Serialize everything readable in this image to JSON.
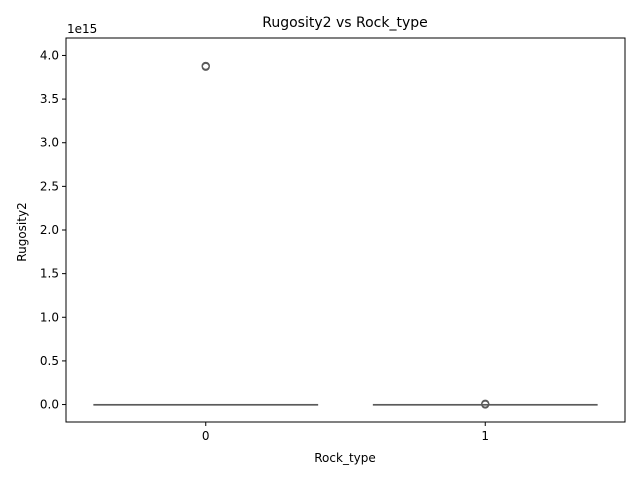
{
  "chart_data": {
    "type": "box",
    "title": "Rugosity2 vs Rock_type",
    "xlabel": "Rock_type",
    "ylabel": "Rugosity2",
    "offset_label": "1e15",
    "categories": [
      "0",
      "1"
    ],
    "y_ticks": [
      "0.0",
      "0.5",
      "1.0",
      "1.5",
      "2.0",
      "2.5",
      "3.0",
      "3.5",
      "4.0"
    ],
    "ylim": [
      -0.2,
      4.2
    ],
    "y_scale_note": "values in units of 1e15",
    "grid": false,
    "boxes": [
      {
        "category": "0",
        "q1": 0,
        "median": 0,
        "q3": 0,
        "whisker_low": 0,
        "whisker_high": 0,
        "outliers": [
          3.87,
          3.88,
          3.88
        ]
      },
      {
        "category": "1",
        "q1": 0,
        "median": 0,
        "q3": 0,
        "whisker_low": 0,
        "whisker_high": 0,
        "outliers": [
          0.0,
          0.005,
          0.01
        ]
      }
    ],
    "colors": {
      "box_line": "#5a5a5a",
      "axes": "#000000"
    }
  }
}
